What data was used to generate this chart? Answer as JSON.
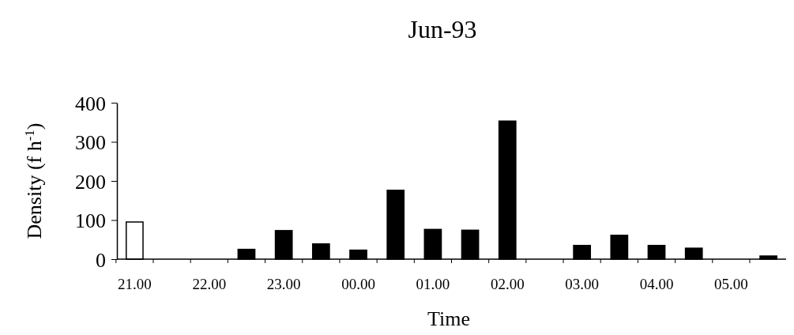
{
  "chart_data": {
    "type": "bar",
    "title": "Jun-93",
    "xlabel": "Time",
    "ylabel": "Density (f h$^{-1}$)",
    "categories": [
      "21.00",
      null,
      "22.00",
      null,
      "23.00",
      null,
      "00.00",
      null,
      "01.00",
      null,
      "02.00",
      null,
      "03.00",
      null,
      "04.00",
      null,
      "05.00",
      null
    ],
    "values": [
      95,
      0,
      0,
      25,
      73,
      39,
      23,
      176,
      76,
      74,
      353,
      0,
      35,
      61,
      35,
      28,
      0,
      8
    ],
    "colors": [
      "#ffffff",
      "#000000",
      "#000000",
      "#000000",
      "#000000",
      "#000000",
      "#000000",
      "#000000",
      "#000000",
      "#000000",
      "#000000",
      "#000000",
      "#000000",
      "#000000",
      "#000000",
      "#000000",
      "#000000",
      "#000000"
    ],
    "ylim": [
      0,
      400
    ],
    "yticks": [
      0,
      100,
      200,
      300,
      400
    ],
    "grid": false
  }
}
